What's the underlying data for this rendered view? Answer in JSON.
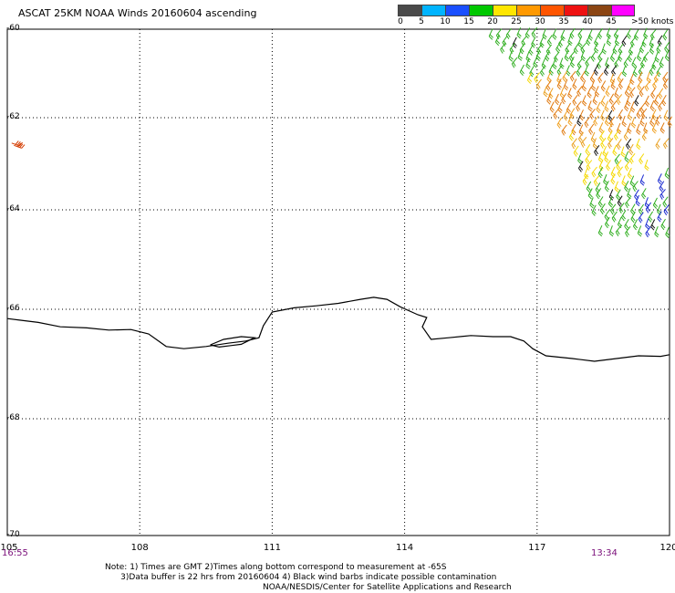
{
  "title": "ASCAT 25KM NOAA Winds 20160604 ascending",
  "legend": {
    "colors": [
      "#4a4a4a",
      "#00b4ff",
      "#1a4fff",
      "#00c800",
      "#ffe600",
      "#ff9900",
      "#ff5500",
      "#ee1111",
      "#8b4513",
      "#ff00ff",
      "#7000c8"
    ],
    "ticks": [
      "0",
      "5",
      "10",
      "15",
      "20",
      "25",
      "30",
      "35",
      "40",
      "45",
      ">50 knots"
    ]
  },
  "lat_labels": [
    "-60",
    "-62",
    "-64",
    "-66",
    "-68",
    "-70"
  ],
  "lon_labels": [
    "105",
    "108",
    "111",
    "114",
    "117",
    "120"
  ],
  "times": {
    "left": "16:55",
    "right": "13:34"
  },
  "notes": [
    "Note: 1) Times are GMT 2)Times along bottom correspond to measurement at -65S",
    "3)Data buffer is 22 hrs from 20160604 4) Black wind barbs indicate possible contamination"
  ],
  "credit": "NOAA/NESDIS/Center for Satellite Applications and Research",
  "map": {
    "lon_range": [
      105,
      120
    ],
    "lat_range": [
      -70,
      -60
    ],
    "grid": true,
    "coastline": [
      [
        105.0,
        -66.17
      ],
      [
        105.3,
        -66.2
      ],
      [
        105.7,
        -66.24
      ],
      [
        106.2,
        -66.32
      ],
      [
        106.8,
        -66.34
      ],
      [
        107.3,
        -66.38
      ],
      [
        107.8,
        -66.37
      ],
      [
        108.2,
        -66.45
      ],
      [
        108.6,
        -66.68
      ],
      [
        109.0,
        -66.72
      ],
      [
        109.5,
        -66.68
      ],
      [
        110.0,
        -66.62
      ],
      [
        110.4,
        -66.58
      ],
      [
        110.7,
        -66.52
      ],
      [
        110.8,
        -66.3
      ],
      [
        111.0,
        -66.05
      ],
      [
        111.5,
        -65.97
      ],
      [
        112.0,
        -65.93
      ],
      [
        112.5,
        -65.88
      ],
      [
        113.0,
        -65.8
      ],
      [
        113.3,
        -65.76
      ],
      [
        113.6,
        -65.8
      ],
      [
        113.9,
        -65.95
      ],
      [
        114.3,
        -66.1
      ],
      [
        114.5,
        -66.15
      ],
      [
        114.4,
        -66.32
      ],
      [
        114.6,
        -66.55
      ],
      [
        115.0,
        -66.52
      ],
      [
        115.5,
        -66.48
      ],
      [
        116.0,
        -66.5
      ],
      [
        116.4,
        -66.5
      ],
      [
        116.7,
        -66.58
      ],
      [
        116.9,
        -66.72
      ],
      [
        117.2,
        -66.85
      ],
      [
        117.8,
        -66.9
      ],
      [
        118.3,
        -66.95
      ],
      [
        118.8,
        -66.9
      ],
      [
        119.3,
        -66.85
      ],
      [
        119.8,
        -66.86
      ],
      [
        120.0,
        -66.83
      ]
    ],
    "inlet": [
      [
        109.6,
        -66.65
      ],
      [
        109.9,
        -66.55
      ],
      [
        110.3,
        -66.5
      ],
      [
        110.6,
        -66.52
      ],
      [
        110.3,
        -66.64
      ],
      [
        109.8,
        -66.69
      ],
      [
        109.6,
        -66.65
      ]
    ],
    "wind_barbs": [
      {
        "lon": 105.1,
        "lat": -62.55,
        "speed": 30,
        "dir": 300
      },
      {
        "lon": 105.15,
        "lat": -62.6,
        "speed": 30,
        "dir": 300
      }
    ]
  }
}
